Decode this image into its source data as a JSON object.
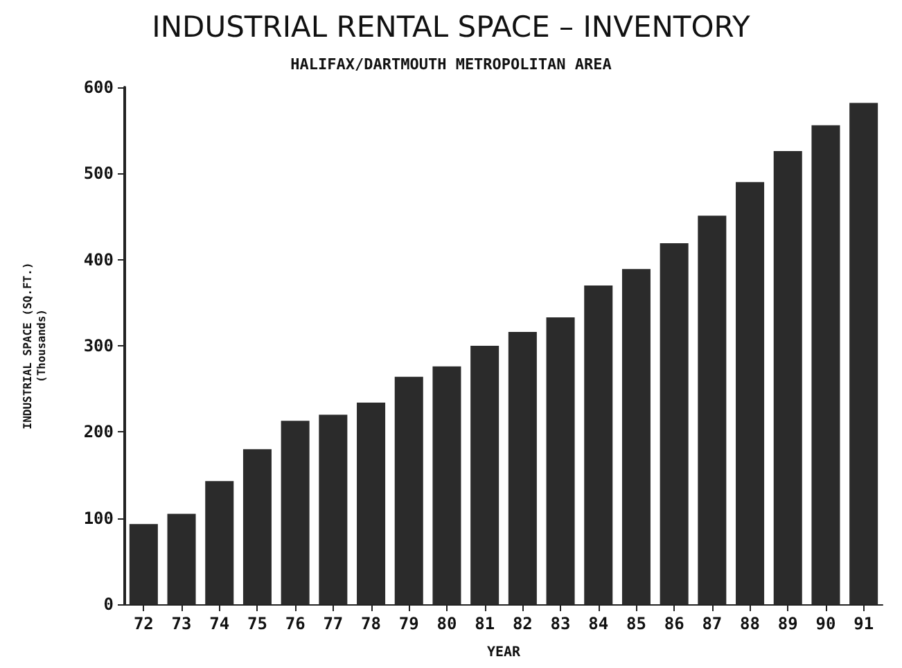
{
  "chart_data": {
    "type": "bar",
    "title": "INDUSTRIAL RENTAL SPACE – INVENTORY",
    "subtitle": "HALIFAX/DARTMOUTH METROPOLITAN AREA",
    "xlabel": "YEAR",
    "ylabel": "INDUSTRIAL SPACE (SQ.FT.)\n(Thousands)",
    "categories": [
      "72",
      "73",
      "74",
      "75",
      "76",
      "77",
      "78",
      "79",
      "80",
      "81",
      "82",
      "83",
      "84",
      "85",
      "86",
      "87",
      "88",
      "89",
      "90",
      "91"
    ],
    "values": [
      93,
      105,
      143,
      180,
      213,
      220,
      234,
      264,
      276,
      300,
      316,
      333,
      370,
      389,
      419,
      451,
      490,
      526,
      556,
      582
    ],
    "color": "#2b2b2b",
    "ylim": [
      0,
      600
    ],
    "yticks": [
      0,
      100,
      200,
      300,
      400,
      500,
      600
    ],
    "grid": false
  }
}
